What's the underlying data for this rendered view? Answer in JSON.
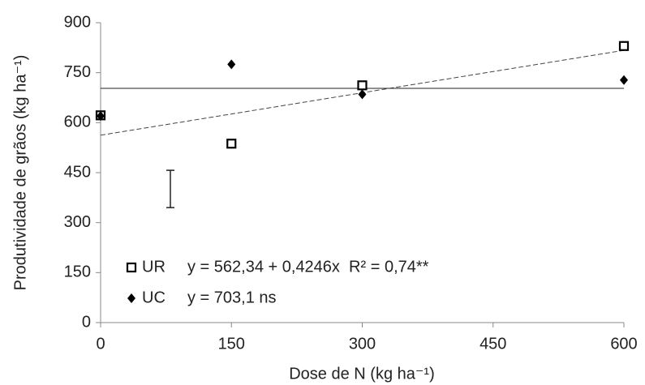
{
  "chart_data": {
    "type": "scatter",
    "x_label": "Dose de N (kg ha⁻¹)",
    "y_label": "Produtividade de grãos (kg ha⁻¹)",
    "xlim": [
      0,
      600
    ],
    "xticks": [
      0,
      150,
      300,
      450,
      600
    ],
    "ylim": [
      0,
      900
    ],
    "yticks": [
      0,
      150,
      300,
      450,
      600,
      750,
      900
    ],
    "series": [
      {
        "name": "UR",
        "marker": "square",
        "color": "#000000",
        "x": [
          0,
          150,
          300,
          600
        ],
        "values": [
          622,
          537,
          712,
          830
        ],
        "fit_intercept": 562.34,
        "fit_slope": 0.4246,
        "fit_style": "dashed",
        "equation": "y = 562,34 + 0,4246x  R² = 0,74**"
      },
      {
        "name": "UC",
        "marker": "diamond",
        "color": "#000000",
        "x": [
          0,
          150,
          300,
          600
        ],
        "values": [
          620,
          775,
          685,
          728
        ],
        "fit_intercept": 703.1,
        "fit_slope": 0,
        "fit_style": "solid",
        "equation": "y = 703,1 ns"
      }
    ],
    "error_bar": {
      "x": 80,
      "low": 345,
      "high": 457
    }
  }
}
